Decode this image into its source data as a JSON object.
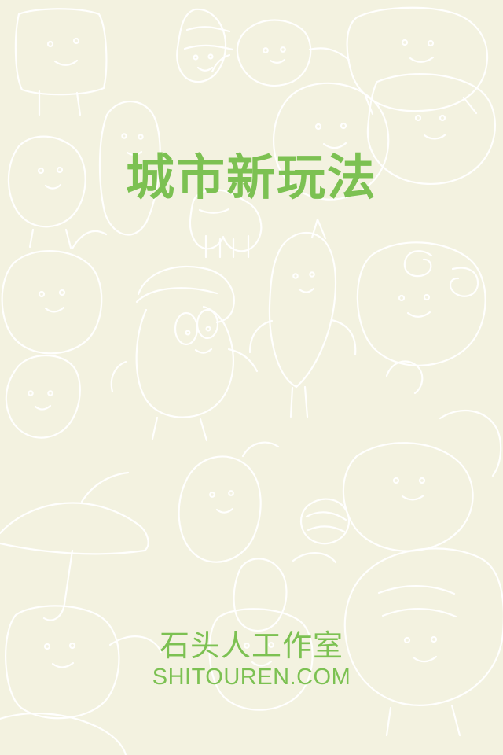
{
  "splash": {
    "title": "城市新玩法",
    "brand_cn": "石头人工作室",
    "brand_url": "SHITOUREN.COM"
  },
  "colors": {
    "background": "#f3f2e0",
    "accent": "#7cc152",
    "doodle": "#ffffff"
  },
  "icons": {
    "background_art": "stone-people-doodle-pattern"
  }
}
